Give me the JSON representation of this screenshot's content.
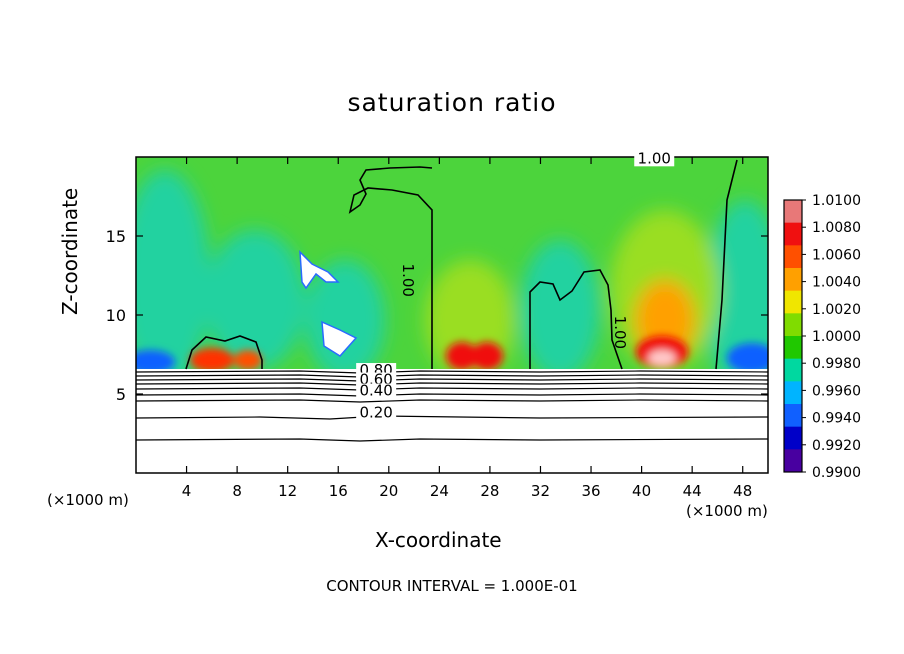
{
  "chart_data": {
    "type": "heatmap",
    "title": "saturation ratio",
    "xlabel": "X-coordinate",
    "ylabel": "Z-coordinate",
    "x_unit": "(×1000 m)",
    "y_unit": "(×1000 m)",
    "xlim": [
      0,
      50
    ],
    "ylim": [
      0,
      20
    ],
    "x_ticks": [
      4,
      8,
      12,
      16,
      20,
      24,
      28,
      32,
      36,
      40,
      44,
      48
    ],
    "y_ticks": [
      5,
      10,
      15
    ],
    "colorbar": {
      "min": 0.99,
      "max": 1.01,
      "labels": [
        "1.0100",
        "1.0080",
        "1.0060",
        "1.0040",
        "1.0020",
        "1.0000",
        "0.9980",
        "0.9960",
        "0.9940",
        "0.9920",
        "0.9900"
      ],
      "colors": [
        "#e87878",
        "#f01010",
        "#ff5000",
        "#ffa000",
        "#f0e600",
        "#80dc00",
        "#20c800",
        "#00d8a0",
        "#00b4ff",
        "#1060ff",
        "#0000c8",
        "#4800a0"
      ]
    },
    "contour_labels": [
      {
        "x": 19,
        "z": 6.2,
        "text": "0.80"
      },
      {
        "x": 19,
        "z": 5.6,
        "text": "0.60"
      },
      {
        "x": 19,
        "z": 4.9,
        "text": "0.40"
      },
      {
        "x": 19,
        "z": 3.5,
        "text": "0.20"
      },
      {
        "x": 21.5,
        "z": 12.2,
        "text": "1.00"
      },
      {
        "x": 38.3,
        "z": 8.9,
        "text": "1.00"
      },
      {
        "x": 41,
        "z": 19.6,
        "text": "1.00"
      }
    ],
    "contour_interval": "CONTOUR INTERVAL = 1.000E-01"
  }
}
